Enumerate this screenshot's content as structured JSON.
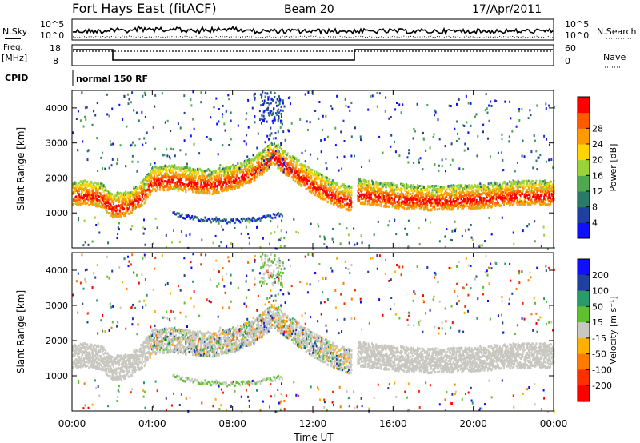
{
  "header": {
    "title": "Fort Hays East (fitACF)",
    "beam": "Beam 20",
    "date": "17/Apr/2011"
  },
  "top_panels": {
    "nsky_label": "N.Sky",
    "nsky_ticks": [
      "10^5",
      "10^0"
    ],
    "nsearch_label": "N.Search",
    "freq_label_1": "Freq.",
    "freq_label_2": "[MHz]",
    "freq_ticks": [
      "18",
      "8"
    ],
    "nave_label": "Nave",
    "nave_ticks": [
      "60",
      "0"
    ],
    "cpid_label": "CPID",
    "cpid_value": "normal 150 RF"
  },
  "chart_data": [
    {
      "type": "heatmap",
      "name": "power",
      "ylabel": "Slant Range [km]",
      "xlabel": "",
      "x_ticks": [
        "00:00",
        "04:00",
        "08:00",
        "12:00",
        "16:00",
        "20:00",
        "00:00"
      ],
      "y_ticks": [
        "1000",
        "2000",
        "3000",
        "4000"
      ],
      "ylim": [
        0,
        4500
      ],
      "xlim_hours": [
        0,
        24
      ],
      "colorbar": {
        "label": "Power [dB]",
        "ticks": [
          "4",
          "8",
          "12",
          "16",
          "20",
          "24",
          "28"
        ],
        "colors": [
          "#1010ff",
          "#2040a0",
          "#2a7a6a",
          "#4fa84f",
          "#9ad23a",
          "#ffd400",
          "#ff9a00",
          "#ff5a00",
          "#ff0000"
        ]
      },
      "main_echo_range_km": [
        [
          0.0,
          1500
        ],
        [
          0.6,
          1520
        ],
        [
          1.4,
          1450
        ],
        [
          2.0,
          1150
        ],
        [
          2.8,
          1200
        ],
        [
          3.5,
          1500
        ],
        [
          4.0,
          1900
        ],
        [
          5.0,
          1950
        ],
        [
          6.0,
          1850
        ],
        [
          7.0,
          1820
        ],
        [
          8.0,
          1950
        ],
        [
          9.0,
          2150
        ],
        [
          10.0,
          2650
        ],
        [
          11.0,
          2200
        ],
        [
          12.0,
          1800
        ],
        [
          13.0,
          1500
        ],
        [
          14.0,
          1300
        ],
        [
          14.2,
          1550
        ],
        [
          16.0,
          1420
        ],
        [
          18.0,
          1350
        ],
        [
          20.0,
          1400
        ],
        [
          22.0,
          1500
        ],
        [
          24.0,
          1500
        ]
      ]
    },
    {
      "type": "heatmap",
      "name": "velocity",
      "ylabel": "Slant Range [km]",
      "xlabel": "Time UT",
      "x_ticks": [
        "00:00",
        "04:00",
        "08:00",
        "12:00",
        "16:00",
        "20:00",
        "00:00"
      ],
      "y_ticks": [
        "1000",
        "2000",
        "3000",
        "4000"
      ],
      "ylim": [
        0,
        4500
      ],
      "xlim_hours": [
        0,
        24
      ],
      "colorbar": {
        "label": "Velocity [m s⁻¹]",
        "ticks": [
          "200",
          "100",
          "50",
          "15",
          "-15",
          "-50",
          "-100",
          "-200"
        ],
        "colors": [
          "#1010ff",
          "#2040a0",
          "#2a9a6a",
          "#60c030",
          "#c8c8c0",
          "#ffb000",
          "#ff7a00",
          "#ff3000",
          "#ff0000"
        ]
      }
    }
  ]
}
